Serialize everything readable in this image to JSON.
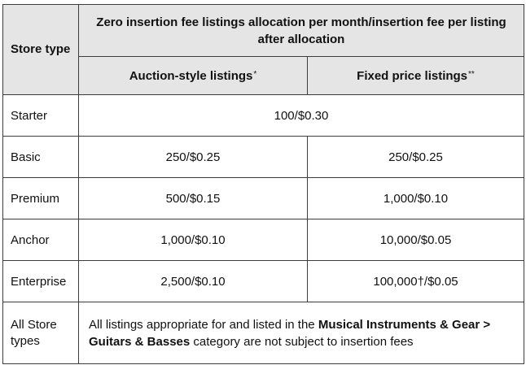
{
  "header": {
    "store_type": "Store type",
    "allocation": "Zero insertion fee listings allocation per month/insertion fee per listing after allocation",
    "auction_label": "Auction-style listings",
    "auction_mark": "*",
    "fixed_label": "Fixed price listings",
    "fixed_mark": "**"
  },
  "rows": [
    {
      "type": "Starter",
      "combined": "100/$0.30"
    },
    {
      "type": "Basic",
      "auction": "250/$0.25",
      "fixed": "250/$0.25"
    },
    {
      "type": "Premium",
      "auction": "500/$0.15",
      "fixed": "1,000/$0.10"
    },
    {
      "type": "Anchor",
      "auction": "1,000/$0.10",
      "fixed": "10,000/$0.05"
    },
    {
      "type": "Enterprise",
      "auction": "2,500/$0.10",
      "fixed": "100,000†/$0.05"
    }
  ],
  "all_store": {
    "type": "All Store types",
    "note_pre": "All listings appropriate for and listed in the ",
    "note_bold": "Musical Instruments & Gear > Guitars & Basses",
    "note_post": " category are not subject to insertion fees"
  }
}
